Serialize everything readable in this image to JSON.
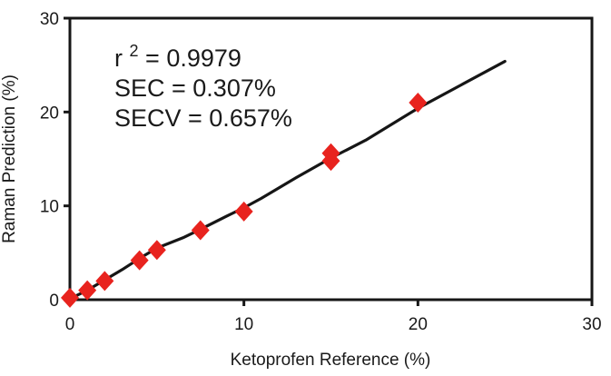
{
  "chart_data": {
    "type": "scatter",
    "title": "",
    "xlabel": "Ketoprofen Reference (%)",
    "ylabel": "Raman Prediction (%)",
    "xlim": [
      0,
      30
    ],
    "ylim": [
      0,
      30
    ],
    "x_ticks": [
      0,
      10,
      20,
      30
    ],
    "y_ticks": [
      0,
      10,
      20,
      30
    ],
    "grid": false,
    "legend": "none",
    "marker": "diamond",
    "marker_color": "#e8231e",
    "fit_line_color": "#161616",
    "annotation_color": "#cc372d",
    "points": [
      [
        0,
        0.2
      ],
      [
        1,
        1.0
      ],
      [
        2,
        2.0
      ],
      [
        4,
        4.2
      ],
      [
        5,
        5.3
      ],
      [
        7.5,
        7.4
      ],
      [
        10,
        9.4
      ],
      [
        15,
        14.8
      ],
      [
        15,
        15.6
      ],
      [
        20,
        21.0
      ]
    ],
    "fit_line": [
      [
        0,
        0.1
      ],
      [
        1,
        1.0
      ],
      [
        2,
        2.1
      ],
      [
        3,
        3.2
      ],
      [
        4,
        4.4
      ],
      [
        5,
        5.5
      ],
      [
        6.5,
        6.6
      ],
      [
        7.5,
        7.5
      ],
      [
        9,
        8.9
      ],
      [
        10,
        9.8
      ],
      [
        11,
        10.8
      ],
      [
        13,
        13.0
      ],
      [
        15,
        15.1
      ],
      [
        17,
        17.0
      ],
      [
        20,
        20.4
      ],
      [
        22.5,
        22.9
      ],
      [
        25,
        25.4
      ]
    ],
    "annotations": {
      "r_base": "r",
      "r_exp": "2",
      "r_rest": " = 0.9979",
      "sec": "SEC = 0.307%",
      "secv": "SECV = 0.657%"
    }
  }
}
